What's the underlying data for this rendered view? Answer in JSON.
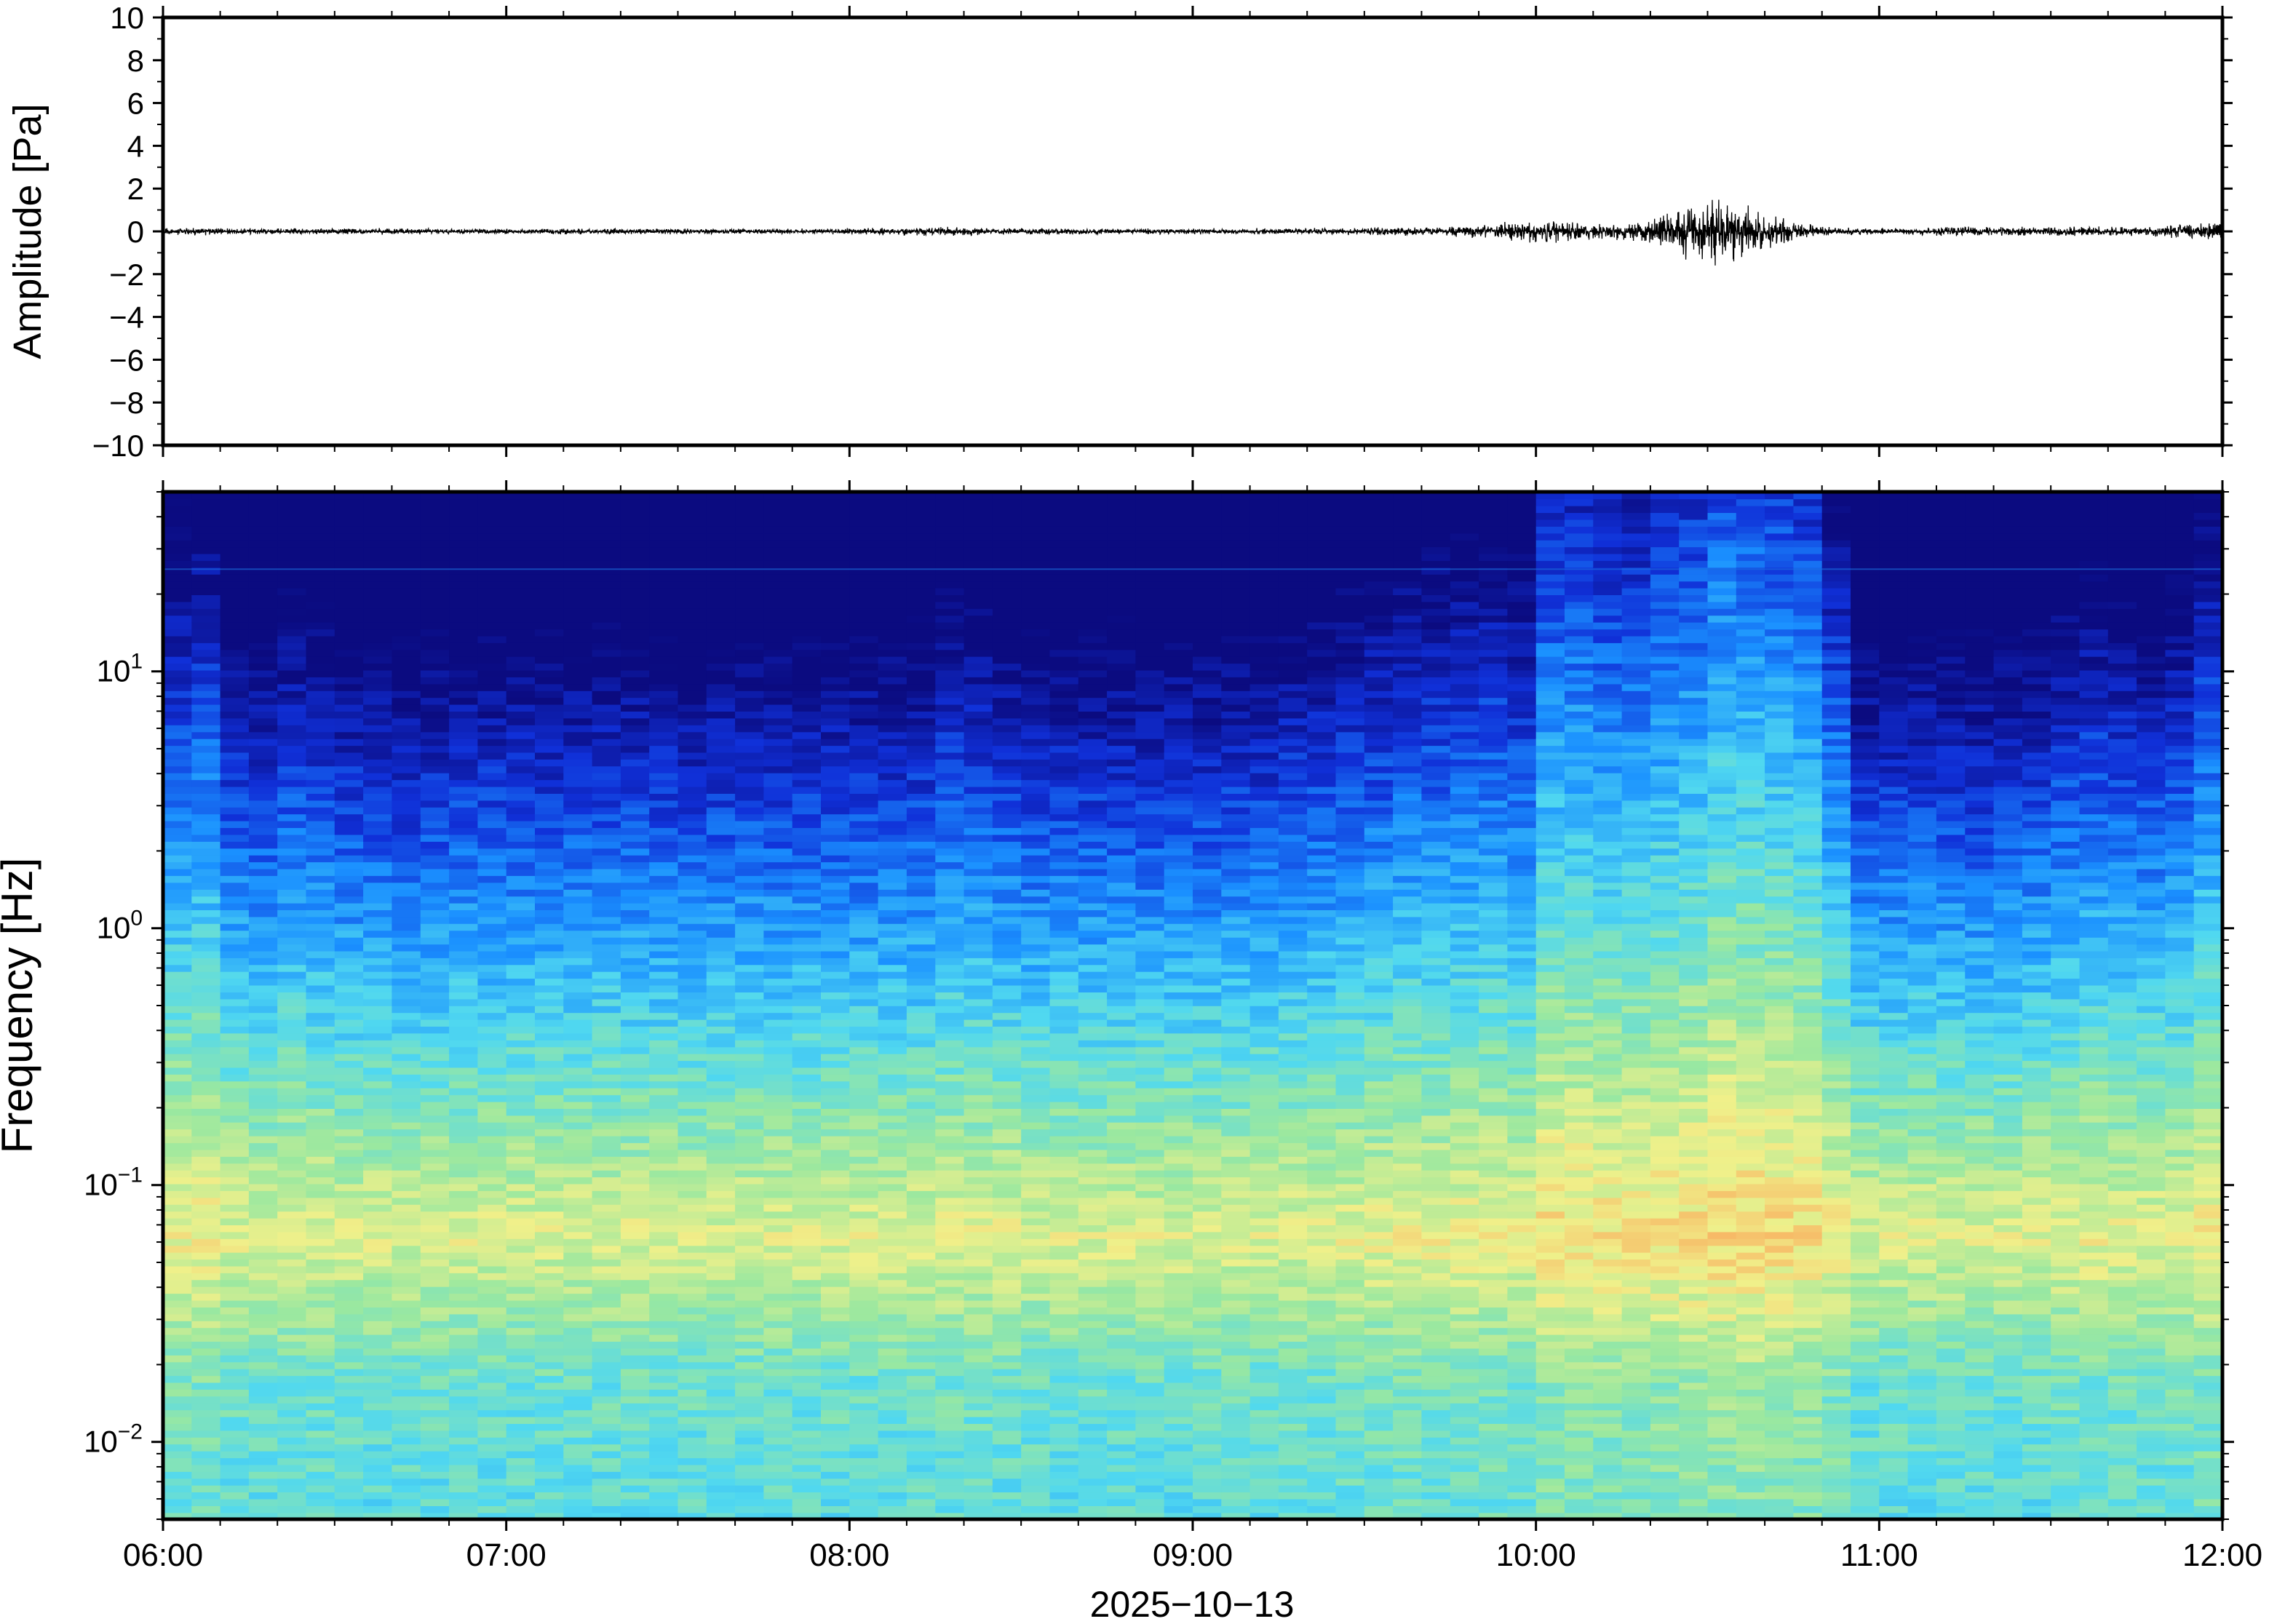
{
  "chart_data": [
    {
      "type": "line",
      "panel": "waveform",
      "ylabel": "Amplitude [Pa]",
      "ylim": [
        -10,
        10
      ],
      "yticks": [
        -10,
        -8,
        -6,
        -4,
        -2,
        0,
        2,
        4,
        6,
        8,
        10
      ],
      "ytick_labels": [
        "−10",
        "−8",
        "−6",
        "−4",
        "−2",
        "0",
        "2",
        "4",
        "6",
        "8",
        "10"
      ],
      "xlim": [
        "06:00",
        "12:00"
      ],
      "grid": false,
      "series": [
        {
          "color": "#000000",
          "x": [
            "06:00",
            "06:15",
            "06:30",
            "06:45",
            "07:00",
            "07:15",
            "07:30",
            "07:45",
            "08:00",
            "08:15",
            "08:30",
            "08:45",
            "09:00",
            "09:15",
            "09:30",
            "09:45",
            "09:55",
            "10:00",
            "10:10",
            "10:15",
            "10:20",
            "10:25",
            "10:30",
            "10:35",
            "10:40",
            "10:45",
            "10:50",
            "11:00",
            "11:15",
            "11:30",
            "11:45",
            "12:00"
          ],
          "envelope": [
            0.15,
            0.1,
            0.1,
            0.1,
            0.08,
            0.1,
            0.1,
            0.08,
            0.1,
            0.15,
            0.1,
            0.1,
            0.1,
            0.1,
            0.12,
            0.15,
            0.3,
            0.4,
            0.3,
            0.3,
            0.45,
            0.7,
            1.3,
            0.9,
            0.6,
            0.4,
            0.15,
            0.1,
            0.15,
            0.15,
            0.15,
            0.3
          ]
        }
      ]
    },
    {
      "type": "heatmap",
      "panel": "spectrogram",
      "ylabel": "Frequency [Hz]",
      "yscale": "log",
      "ylim": [
        0.005,
        50
      ],
      "yticks": [
        0.01,
        0.1,
        1,
        10
      ],
      "ytick_labels": [
        {
          "base": "10",
          "exp": "−2"
        },
        {
          "base": "10",
          "exp": "−1"
        },
        {
          "base": "10",
          "exp": "0"
        },
        {
          "base": "10",
          "exp": "1"
        }
      ],
      "xlabel": "2025−10−13",
      "xlim": [
        "06:00",
        "12:00"
      ],
      "xtick_labels": [
        "06:00",
        "07:00",
        "08:00",
        "09:00",
        "10:00",
        "11:00",
        "12:00"
      ],
      "colormap": "jet",
      "colors": [
        "#0b0b80",
        "#1030d8",
        "#1a90ff",
        "#50d8f0",
        "#9ae8a0",
        "#f0f08a",
        "#f8b060",
        "#e84838"
      ],
      "time_windows": [
        "06:00",
        "06:05",
        "06:10",
        "06:15",
        "06:20",
        "06:25",
        "06:30",
        "06:35",
        "06:40",
        "06:45",
        "06:50",
        "06:55",
        "07:00",
        "07:05",
        "07:10",
        "07:15",
        "07:20",
        "07:25",
        "07:30",
        "07:35",
        "07:40",
        "07:45",
        "07:50",
        "07:55",
        "08:00",
        "08:05",
        "08:10",
        "08:15",
        "08:20",
        "08:25",
        "08:30",
        "08:35",
        "08:40",
        "08:45",
        "08:50",
        "08:55",
        "09:00",
        "09:05",
        "09:10",
        "09:15",
        "09:20",
        "09:25",
        "09:30",
        "09:35",
        "09:40",
        "09:45",
        "09:50",
        "09:55",
        "10:00",
        "10:05",
        "10:10",
        "10:15",
        "10:20",
        "10:25",
        "10:30",
        "10:35",
        "10:40",
        "10:45",
        "10:50",
        "10:55",
        "11:00",
        "11:05",
        "11:10",
        "11:15",
        "11:20",
        "11:25",
        "11:30",
        "11:35",
        "11:40",
        "11:45",
        "11:50",
        "11:55"
      ],
      "relative_power": [
        0.55,
        0.6,
        0.35,
        0.3,
        0.4,
        0.35,
        0.3,
        0.3,
        0.25,
        0.28,
        0.3,
        0.3,
        0.3,
        0.3,
        0.3,
        0.32,
        0.3,
        0.3,
        0.28,
        0.3,
        0.32,
        0.3,
        0.3,
        0.3,
        0.3,
        0.3,
        0.32,
        0.4,
        0.38,
        0.35,
        0.3,
        0.3,
        0.3,
        0.3,
        0.3,
        0.3,
        0.3,
        0.32,
        0.3,
        0.35,
        0.38,
        0.42,
        0.45,
        0.5,
        0.5,
        0.52,
        0.55,
        0.5,
        0.85,
        0.85,
        0.8,
        0.78,
        0.85,
        0.9,
        1.0,
        0.98,
        0.95,
        0.9,
        0.65,
        0.3,
        0.3,
        0.32,
        0.3,
        0.28,
        0.3,
        0.32,
        0.4,
        0.45,
        0.4,
        0.38,
        0.42,
        0.6
      ]
    }
  ]
}
